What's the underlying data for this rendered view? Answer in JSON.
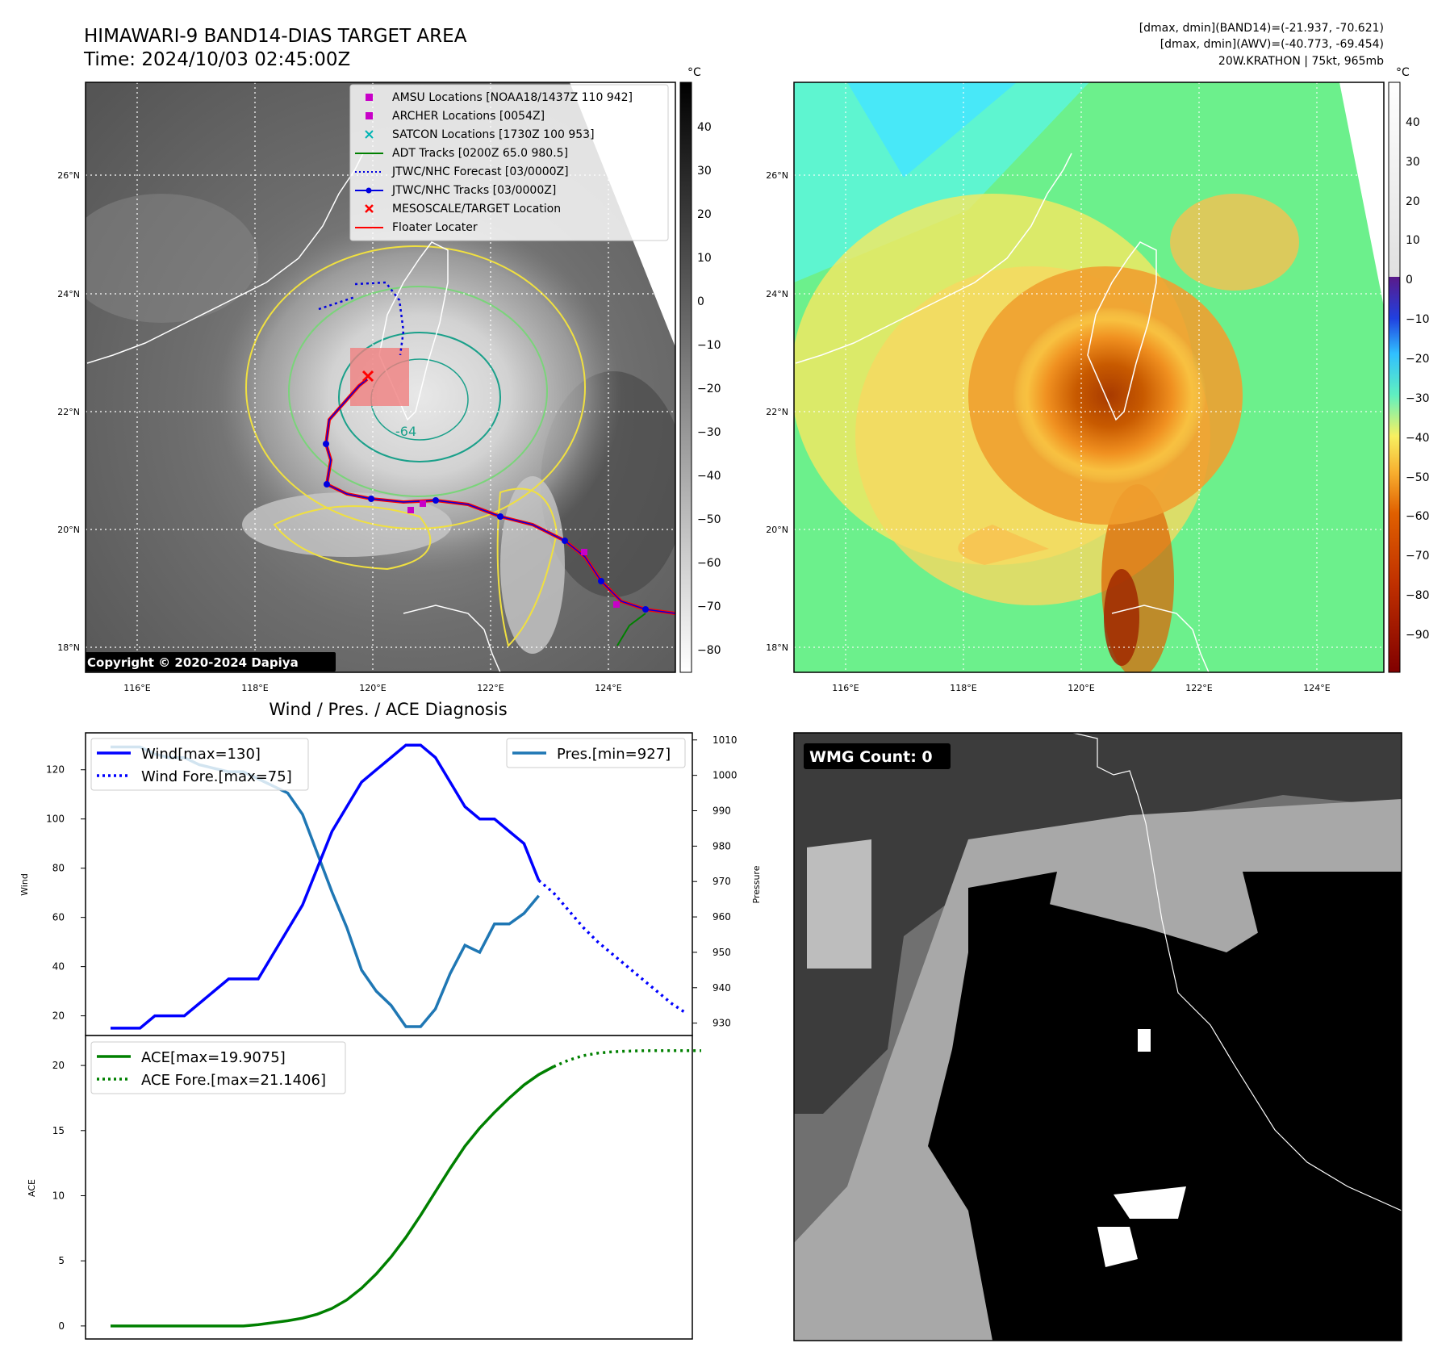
{
  "header": {
    "title_line1": "HIMAWARI-9 BAND14-DIAS TARGET AREA",
    "title_line2": "Time: 2024/10/03 02:45:00Z",
    "info_line1": "[dmax, dmin](BAND14)=(-21.937, -70.621)",
    "info_line2": "[dmax, dmin](AWV)=(-40.773, -69.454)",
    "info_line3": "20W.KRATHON | 75kt, 965mb"
  },
  "maps": {
    "lat_labels": [
      "26°N",
      "24°N",
      "22°N",
      "20°N",
      "18°N"
    ],
    "lon_labels": [
      "116°E",
      "118°E",
      "120°E",
      "122°E",
      "124°E"
    ],
    "copyright": "Copyright © 2020-2024 Dapiya",
    "contour_label": "-64",
    "legend": [
      {
        "label": "AMSU Locations [NOAA18/1437Z 110 942]",
        "color": "#c800c8",
        "symbol": "square"
      },
      {
        "label": "ARCHER Locations [0054Z]",
        "color": "#c800c8",
        "symbol": "square"
      },
      {
        "label": "SATCON Locations [1730Z 100 953]",
        "color": "#00b4b4",
        "symbol": "x"
      },
      {
        "label": "ADT Tracks [0200Z 65.0 980.5]",
        "color": "#008000",
        "symbol": "line"
      },
      {
        "label": "JTWC/NHC Forecast [03/0000Z]",
        "color": "#0000e0",
        "symbol": "dotted"
      },
      {
        "label": "JTWC/NHC Tracks [03/0000Z]",
        "color": "#0000e0",
        "symbol": "line-dot"
      },
      {
        "label": "MESOSCALE/TARGET Location",
        "color": "#ff0000",
        "symbol": "x"
      },
      {
        "label": "Floater Locater",
        "color": "#ff0000",
        "symbol": "line"
      }
    ],
    "left_colorbar": {
      "unit": "°C",
      "ticks": [
        "40",
        "30",
        "20",
        "10",
        "0",
        "−10",
        "−20",
        "−30",
        "−40",
        "−50",
        "−60",
        "−70",
        "−80"
      ]
    },
    "right_colorbar": {
      "unit": "°C",
      "ticks": [
        "40",
        "30",
        "20",
        "10",
        "0",
        "−10",
        "−20",
        "−30",
        "−40",
        "−50",
        "−60",
        "−70",
        "−80",
        "−90"
      ]
    }
  },
  "diagnosis_title": "Wind / Pres. / ACE Diagnosis",
  "wmg_count": "WMG Count: 0",
  "chart_data": [
    {
      "type": "line",
      "ylabel": "Wind",
      "y2label": "Pressure",
      "ylim": [
        12,
        135
      ],
      "y2lim": [
        926.5,
        1012
      ],
      "yticks": [
        "120",
        "100",
        "80",
        "60",
        "40",
        "20"
      ],
      "y2ticks": [
        "1010",
        "1000",
        "990",
        "980",
        "970",
        "960",
        "950",
        "940",
        "930"
      ],
      "series": [
        {
          "name": "Wind[max=130]",
          "color": "#0000ff",
          "style": "solid",
          "axis": "left",
          "values": [
            15,
            15,
            15,
            20,
            20,
            20,
            25,
            30,
            35,
            35,
            35,
            45,
            55,
            65,
            80,
            95,
            105,
            115,
            120,
            125,
            130,
            130,
            125,
            115,
            105,
            100,
            100,
            95,
            90,
            75
          ]
        },
        {
          "name": "Wind Fore.[max=75]",
          "color": "#0000ff",
          "style": "dotted",
          "axis": "left",
          "values": [
            75,
            70,
            63,
            56,
            50,
            45,
            40,
            35,
            30,
            25,
            21
          ]
        },
        {
          "name": "Pres.[min=927]",
          "color": "#1f77b4",
          "style": "solid",
          "axis": "right",
          "values": [
            1008,
            1008,
            1008,
            1006,
            1005,
            1005,
            1003,
            1002,
            1001,
            1001,
            999,
            997,
            995,
            989,
            978,
            967,
            957,
            945,
            939,
            935,
            929,
            929,
            934,
            944,
            952,
            950,
            958,
            958,
            961,
            966
          ]
        }
      ]
    },
    {
      "type": "line",
      "ylabel": "ACE",
      "ylim": [
        -1,
        22.3
      ],
      "yticks": [
        "20",
        "15",
        "10",
        "5",
        "0"
      ],
      "series": [
        {
          "name": "ACE[max=19.9075]",
          "color": "#008000",
          "style": "solid",
          "values": [
            0,
            0,
            0,
            0,
            0,
            0,
            0,
            0,
            0,
            0,
            0.1,
            0.25,
            0.4,
            0.6,
            0.9,
            1.35,
            2.0,
            2.9,
            4.0,
            5.3,
            6.8,
            8.5,
            10.3,
            12.1,
            13.8,
            15.2,
            16.4,
            17.5,
            18.5,
            19.3,
            19.9075
          ]
        },
        {
          "name": "ACE Fore.[max=21.1406]",
          "color": "#008000",
          "style": "dotted",
          "values": [
            19.9075,
            20.4,
            20.75,
            20.95,
            21.05,
            21.1,
            21.13,
            21.14,
            21.14,
            21.14,
            21.1406
          ]
        }
      ]
    }
  ]
}
